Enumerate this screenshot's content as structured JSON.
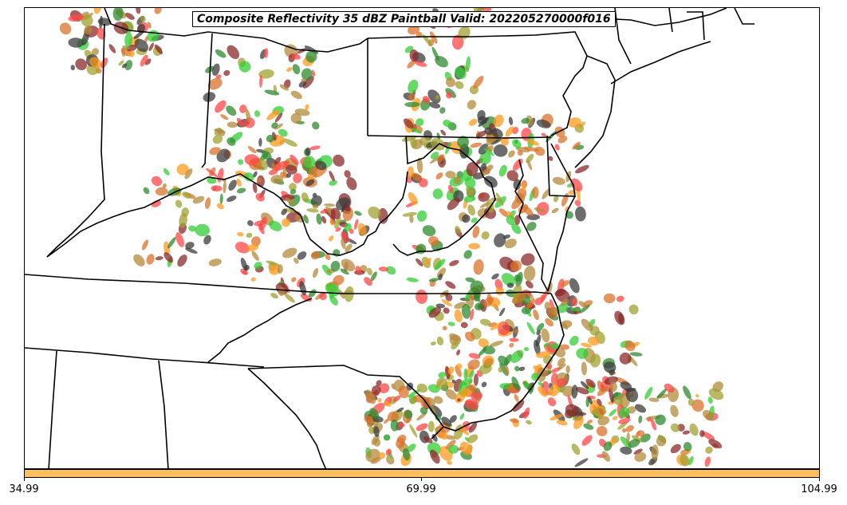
{
  "title": "Composite Reflectivity 35 dBZ Paintball Valid: 202205270000f016",
  "colorbar": {
    "color": "#ffbf5e",
    "ticks": [
      "34.99",
      "69.99",
      "104.99"
    ]
  },
  "member_colors": [
    "#ff4747",
    "#ff9a1f",
    "#b38a3b",
    "#8b2a2a",
    "#a0a032",
    "#2e8b2e",
    "#33cc33",
    "#3c3c3c",
    "#d9732a"
  ],
  "map": {
    "region": "Mid-Atlantic / Ohio Valley",
    "boundaries": "state borders and coastlines",
    "boundary_color": "#000000"
  }
}
